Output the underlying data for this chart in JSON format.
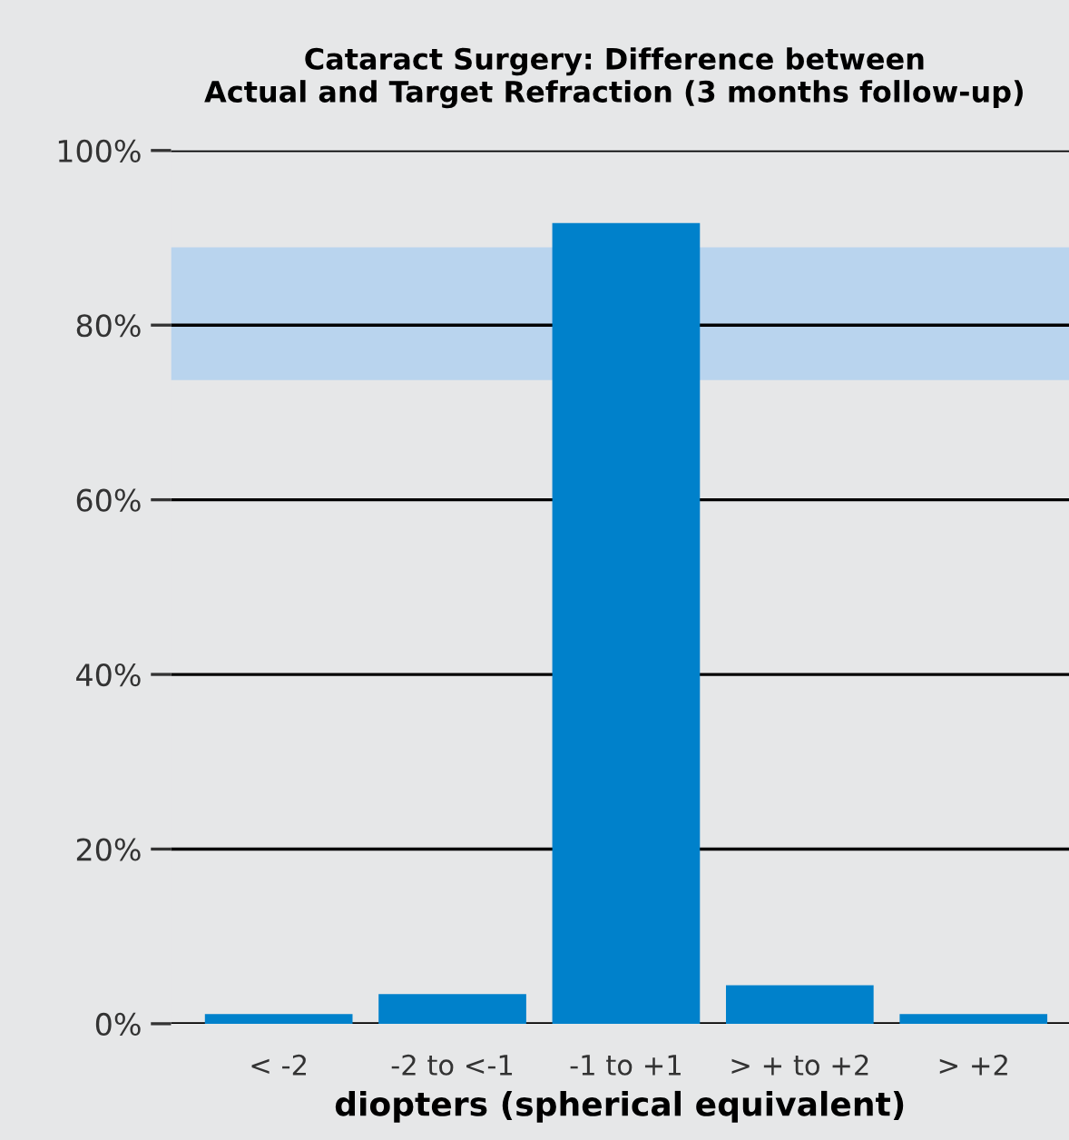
{
  "chart_data": {
    "type": "bar",
    "title": "Cataract Surgery: Difference between\nActual and Target Refraction (3 months follow-up)",
    "xlabel": "diopters (spherical equivalent)",
    "categories": [
      "< -2",
      "-2 to <-1",
      "-1 to +1",
      "> + to +2",
      "> +2"
    ],
    "values": [
      1.1,
      3.4,
      91.7,
      4.4,
      1.1
    ],
    "color": "#0081cb",
    "ylim": [
      0,
      100
    ],
    "yticks": [
      {
        "value": 0,
        "label": "0%"
      },
      {
        "value": 20,
        "label": "20%"
      },
      {
        "value": 40,
        "label": "40%"
      },
      {
        "value": 60,
        "label": "60%"
      },
      {
        "value": 80,
        "label": "80%"
      },
      {
        "value": 100,
        "label": "100%"
      }
    ],
    "bands": [
      {
        "axis": "y",
        "from": 73.7,
        "to": 88.9,
        "color": "#b9d4ee"
      }
    ],
    "grid": "y"
  }
}
